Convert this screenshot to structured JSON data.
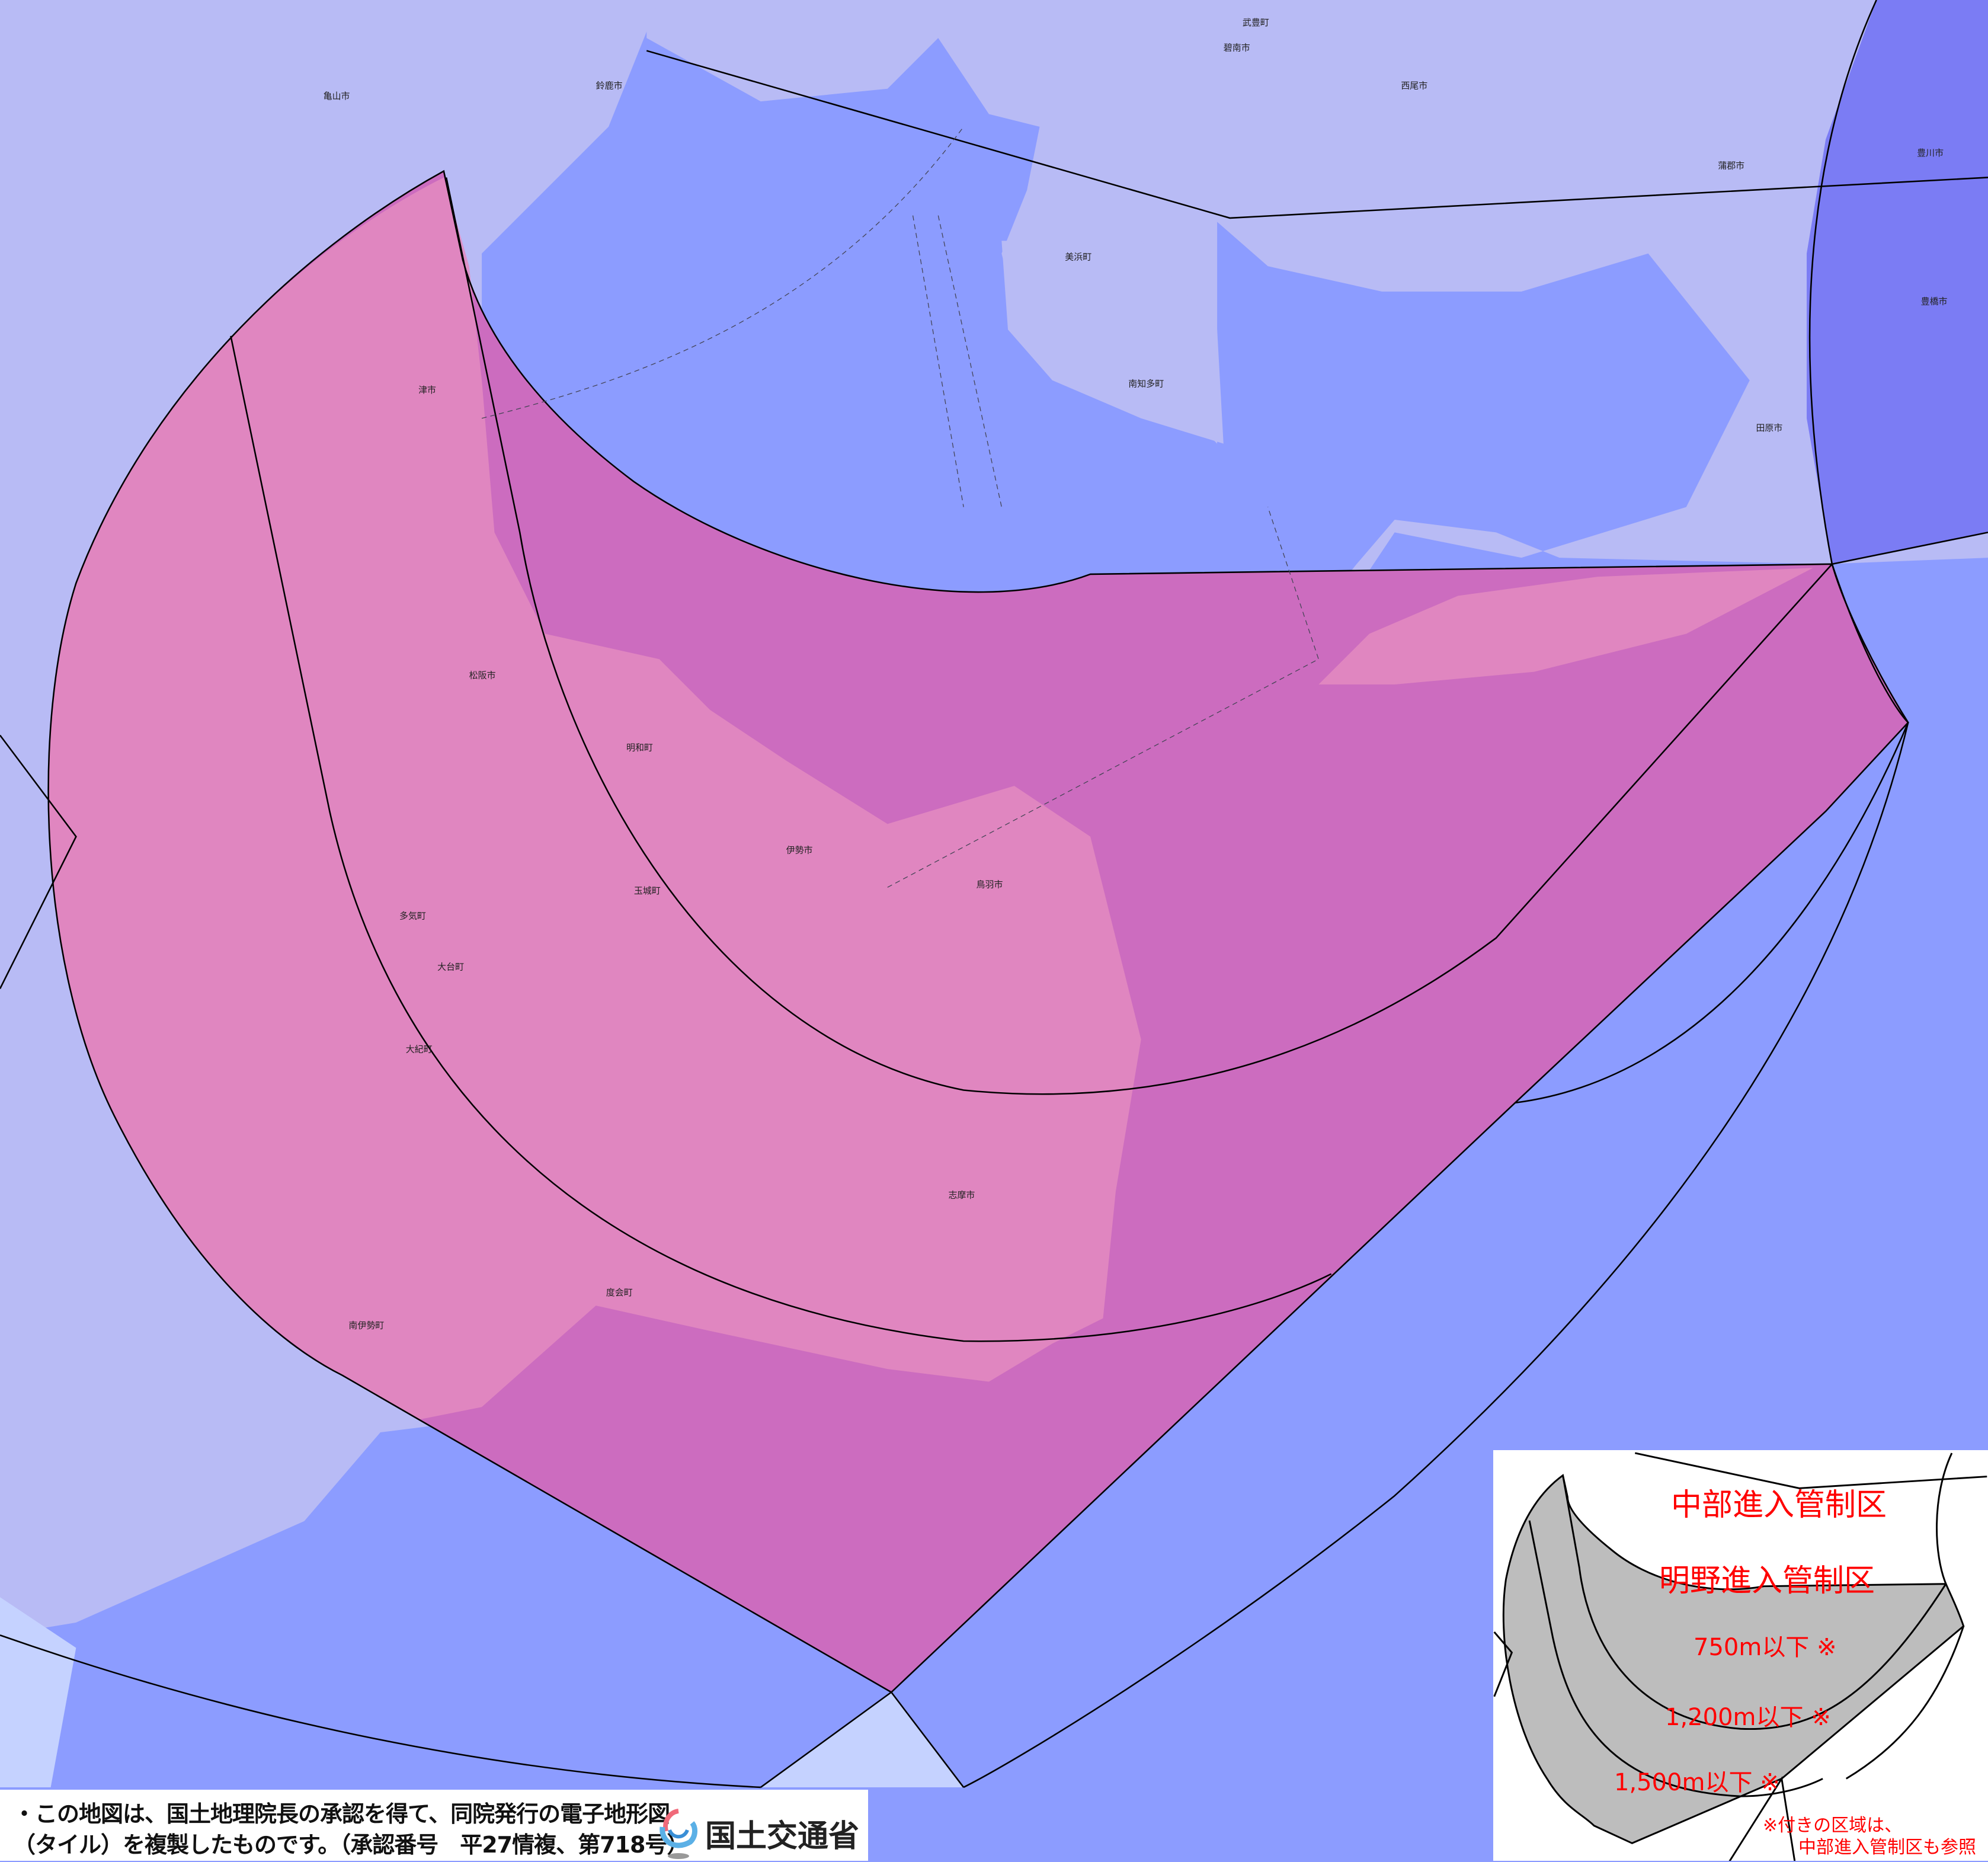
{
  "map": {
    "colors": {
      "sea": "#8c9cff",
      "land": "#b8bbf5",
      "meiyo_zone": "#cc6cbf",
      "meiyo_land": "#e38bc0",
      "east_zone": "#7b7cf4",
      "outside": "#c5d2ff",
      "boundary": "#000000"
    },
    "place_labels": [
      "津市",
      "松阪市",
      "多気町",
      "大台町",
      "大紀町",
      "南伊勢町",
      "度会町",
      "玉城町",
      "明和町",
      "伊勢市",
      "鳥羽市",
      "志摩市",
      "南知多町",
      "美浜町",
      "田原市",
      "豊川市",
      "西尾市",
      "鈴鹿市",
      "亀山市",
      "武豊町",
      "碧南市",
      "蒲郡市",
      "豊橋市"
    ]
  },
  "inset": {
    "chubu_label": "中部進入管制区",
    "meiyo_label": "明野進入管制区",
    "alt_750": "750m以下 ※",
    "alt_1200": "1,200m以下 ※",
    "alt_1500": "1,500m以下 ※",
    "note_line1": "※付きの区域は、",
    "note_line2": "中部進入管制区も参照",
    "label_color": "#ff0000",
    "zone_color": "#bdbdbd"
  },
  "notice": {
    "line1": "・この地図は、国土地理院長の承認を得て、同院発行の電子地形図",
    "line2": "（タイル）を複製したものです。（承認番号　平27情複、第718号）"
  },
  "logo": {
    "text": "国土交通省",
    "icon": "mlit-logo-icon"
  }
}
